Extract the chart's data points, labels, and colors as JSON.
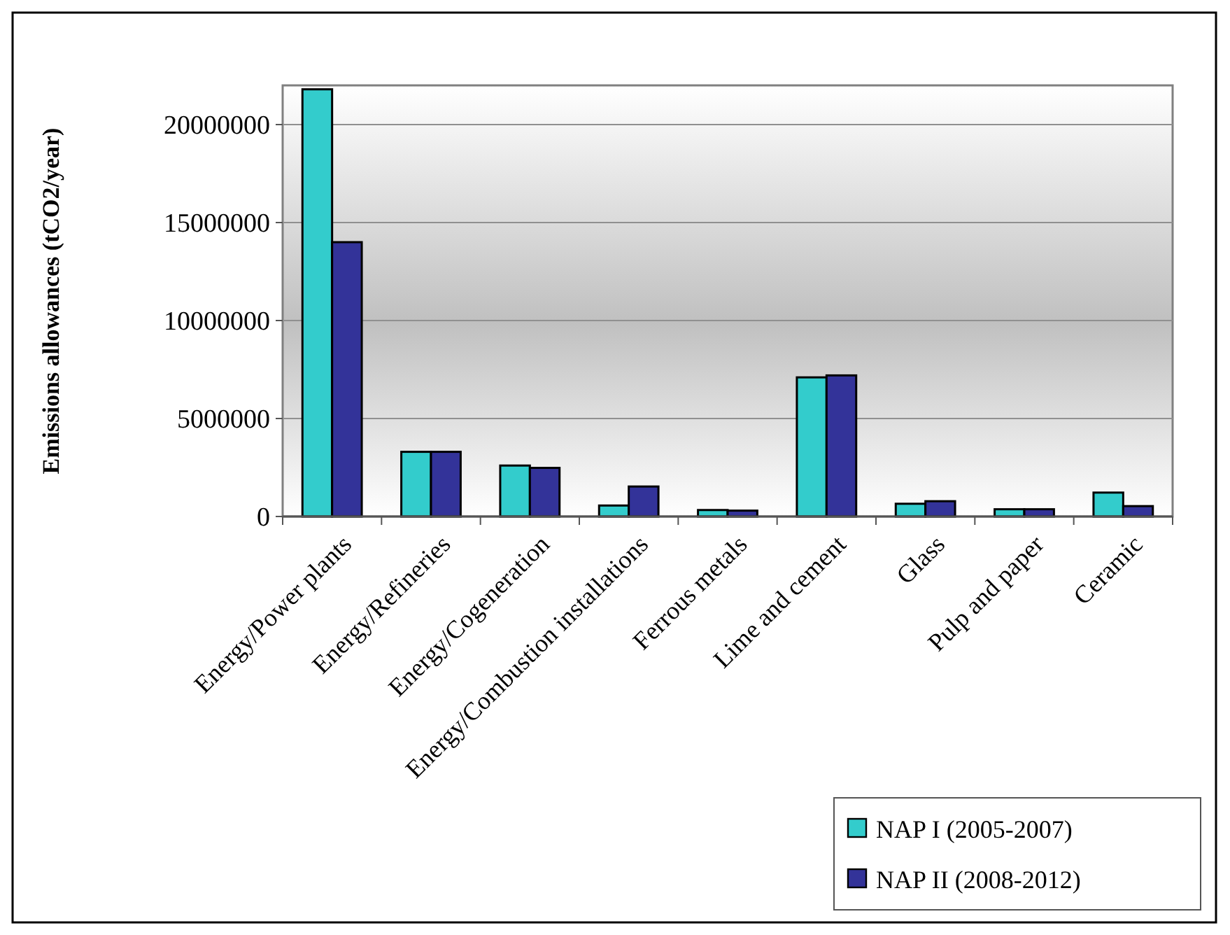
{
  "chart_data": {
    "type": "bar",
    "ylabel": "Emissions allowances (tCO2/year)",
    "categories": [
      "Energy/Power plants",
      "Energy/Refineries",
      "Energy/Cogeneration",
      "Energy/Combustion installations",
      "Ferrous metals",
      "Lime and cement",
      "Glass",
      "Pulp and paper",
      "Ceramic"
    ],
    "series": [
      {
        "name": "NAP I (2005-2007)",
        "color": "#33cccc",
        "values": [
          21800000,
          3300000,
          2600000,
          560000,
          330000,
          7100000,
          650000,
          370000,
          1220000
        ]
      },
      {
        "name": "NAP II (2008-2012)",
        "color": "#333399",
        "values": [
          14000000,
          3300000,
          2480000,
          1530000,
          300000,
          7200000,
          780000,
          370000,
          530000
        ]
      }
    ],
    "ylim": [
      0,
      22000000
    ],
    "yticks": [
      0,
      5000000,
      10000000,
      15000000,
      20000000
    ],
    "grid": "y",
    "legend": "bottom right"
  }
}
